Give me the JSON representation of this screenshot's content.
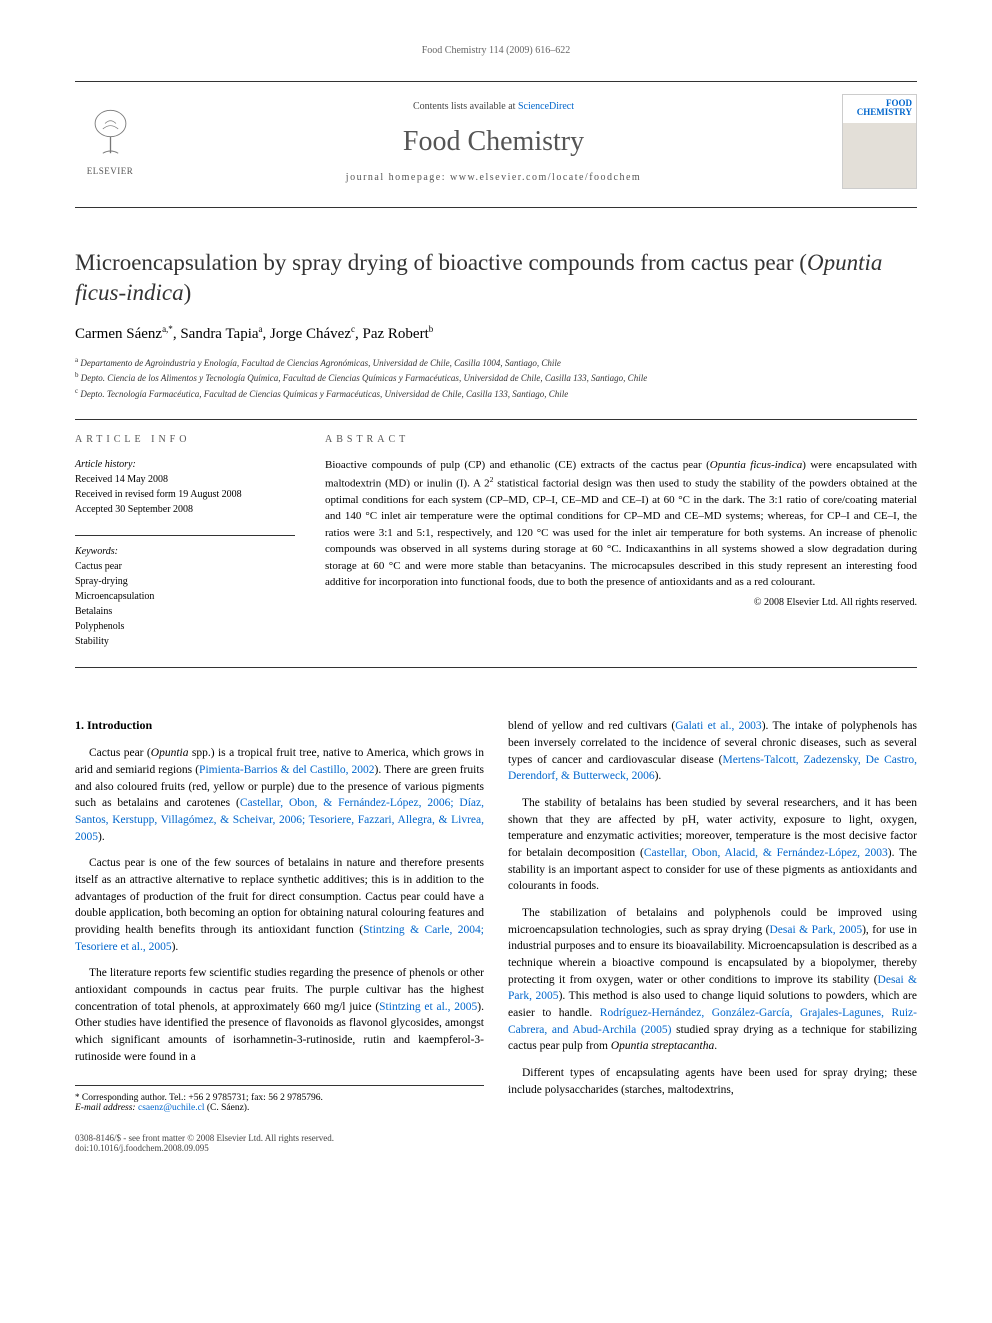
{
  "header": {
    "citation": "Food Chemistry 114 (2009) 616–622",
    "contents_prefix": "Contents lists available at ",
    "contents_link": "ScienceDirect",
    "journal_name": "Food Chemistry",
    "homepage_prefix": "journal homepage: ",
    "homepage_url": "www.elsevier.com/locate/foodchem",
    "publisher": "ELSEVIER",
    "cover_label_1": "FOOD",
    "cover_label_2": "CHEMISTRY"
  },
  "article": {
    "title_main": "Microencapsulation by spray drying of bioactive compounds from cactus pear (",
    "title_italic": "Opuntia ficus-indica",
    "title_close": ")",
    "authors": [
      {
        "name": "Carmen Sáenz",
        "aff": "a,",
        "corr": "*"
      },
      {
        "name": "Sandra Tapia",
        "aff": "a"
      },
      {
        "name": "Jorge Chávez",
        "aff": "c"
      },
      {
        "name": "Paz Robert",
        "aff": "b"
      }
    ],
    "affiliations": [
      {
        "sup": "a",
        "text": "Departamento de Agroindustria y Enología, Facultad de Ciencias Agronómicas, Universidad de Chile, Casilla 1004, Santiago, Chile"
      },
      {
        "sup": "b",
        "text": "Depto. Ciencia de los Alimentos y Tecnología Química, Facultad de Ciencias Químicas y Farmacéuticas, Universidad de Chile, Casilla 133, Santiago, Chile"
      },
      {
        "sup": "c",
        "text": "Depto. Tecnología Farmacéutica, Facultad de Ciencias Químicas y Farmacéuticas, Universidad de Chile, Casilla 133, Santiago, Chile"
      }
    ]
  },
  "info": {
    "article_info_label": "ARTICLE INFO",
    "abstract_label": "ABSTRACT",
    "history_label": "Article history:",
    "history": [
      "Received 14 May 2008",
      "Received in revised form 19 August 2008",
      "Accepted 30 September 2008"
    ],
    "keywords_label": "Keywords:",
    "keywords": [
      "Cactus pear",
      "Spray-drying",
      "Microencapsulation",
      "Betalains",
      "Polyphenols",
      "Stability"
    ],
    "abstract_html": "Bioactive compounds of pulp (CP) and ethanolic (CE) extracts of the cactus pear (<span class='italic'>Opuntia ficus-indica</span>) were encapsulated with maltodextrin (MD) or inulin (I). A 2<sup>2</sup> statistical factorial design was then used to study the stability of the powders obtained at the optimal conditions for each system (CP–MD, CP–I, CE–MD and CE–I) at 60 °C in the dark. The 3:1 ratio of core/coating material and 140 °C inlet air temperature were the optimal conditions for CP–MD and CE–MD systems; whereas, for CP–I and CE–I, the ratios were 3:1 and 5:1, respectively, and 120 °C was used for the inlet air temperature for both systems. An increase of phenolic compounds was observed in all systems during storage at 60 °C. Indicaxanthins in all systems showed a slow degradation during storage at 60 °C and were more stable than betacyanins. The microcapsules described in this study represent an interesting food additive for incorporation into functional foods, due to both the presence of antioxidants and as a red colourant.",
    "copyright": "© 2008 Elsevier Ltd. All rights reserved."
  },
  "body": {
    "section_1_heading": "1. Introduction",
    "col1_p1": "Cactus pear (<span class='italic'>Opuntia</span> spp.) is a tropical fruit tree, native to America, which grows in arid and semiarid regions (<a class='ref-link' data-name='citation-link' data-interactable='true'>Pimienta-Barrios & del Castillo, 2002</a>). There are green fruits and also coloured fruits (red, yellow or purple) due to the presence of various pigments such as betalains and carotenes (<a class='ref-link' data-name='citation-link' data-interactable='true'>Castellar, Obon, & Fernández-López, 2006; Díaz, Santos, Kerstupp, Villagómez, & Scheivar, 2006; Tesoriere, Fazzari, Allegra, & Livrea, 2005</a>).",
    "col1_p2": "Cactus pear is one of the few sources of betalains in nature and therefore presents itself as an attractive alternative to replace synthetic additives; this is in addition to the advantages of production of the fruit for direct consumption. Cactus pear could have a double application, both becoming an option for obtaining natural colouring features and providing health benefits through its antioxidant function (<a class='ref-link' data-name='citation-link' data-interactable='true'>Stintzing & Carle, 2004; Tesoriere et al., 2005</a>).",
    "col1_p3": "The literature reports few scientific studies regarding the presence of phenols or other antioxidant compounds in cactus pear fruits. The purple cultivar has the highest concentration of total phenols, at approximately 660 mg/l juice (<a class='ref-link' data-name='citation-link' data-interactable='true'>Stintzing et al., 2005</a>). Other studies have identified the presence of flavonoids as flavonol glycosides, amongst which significant amounts of isorhamnetin-3-rutinoside, rutin and kaempferol-3-rutinoside were found in a",
    "col2_p1": "blend of yellow and red cultivars (<a class='ref-link' data-name='citation-link' data-interactable='true'>Galati et al., 2003</a>). The intake of polyphenols has been inversely correlated to the incidence of several chronic diseases, such as several types of cancer and cardiovascular disease (<a class='ref-link' data-name='citation-link' data-interactable='true'>Mertens-Talcott, Zadezensky, De Castro, Derendorf, & Butterweck, 2006</a>).",
    "col2_p2": "The stability of betalains has been studied by several researchers, and it has been shown that they are affected by pH, water activity, exposure to light, oxygen, temperature and enzymatic activities; moreover, temperature is the most decisive factor for betalain decomposition (<a class='ref-link' data-name='citation-link' data-interactable='true'>Castellar, Obon, Alacid, & Fernández-López, 2003</a>). The stability is an important aspect to consider for use of these pigments as antioxidants and colourants in foods.",
    "col2_p3": "The stabilization of betalains and polyphenols could be improved using microencapsulation technologies, such as spray drying (<a class='ref-link' data-name='citation-link' data-interactable='true'>Desai & Park, 2005</a>), for use in industrial purposes and to ensure its bioavailability. Microencapsulation is described as a technique wherein a bioactive compound is encapsulated by a biopolymer, thereby protecting it from oxygen, water or other conditions to improve its stability (<a class='ref-link' data-name='citation-link' data-interactable='true'>Desai & Park, 2005</a>). This method is also used to change liquid solutions to powders, which are easier to handle. <a class='ref-link' data-name='citation-link' data-interactable='true'>Rodríguez-Hernández, González-García, Grajales-Lagunes, Ruiz-Cabrera, and Abud-Archila (2005)</a> studied spray drying as a technique for stabilizing cactus pear pulp from <span class='italic'>Opuntia streptacantha</span>.",
    "col2_p4": "Different types of encapsulating agents have been used for spray drying; these include polysaccharides (starches, maltodextrins,"
  },
  "footer": {
    "corresponding": "Corresponding author. Tel.: +56 2 9785731; fax: 56 2 9785796.",
    "email_label": "E-mail address:",
    "email": "csaenz@uchile.cl",
    "email_person": "(C. Sáenz).",
    "issn_line": "0308-8146/$ - see front matter © 2008 Elsevier Ltd. All rights reserved.",
    "doi": "doi:10.1016/j.foodchem.2008.09.095"
  },
  "colors": {
    "link": "#0066cc",
    "text": "#000000",
    "muted": "#555555"
  }
}
